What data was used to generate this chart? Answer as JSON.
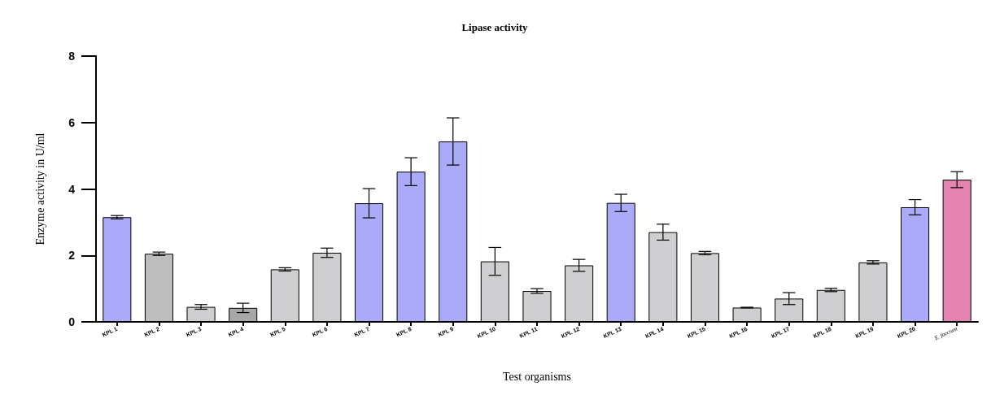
{
  "chart_data": {
    "type": "bar",
    "title": "Lipase activity",
    "xlabel": "Test organisms",
    "ylabel": "Enzyme activity in U/ml",
    "categories": [
      "KPL 1",
      "KPL 2",
      "KPL 3",
      "KPL 4",
      "KPL 5",
      "KPL 6",
      "KPL 7",
      "KPL 8",
      "KPL 9",
      "KPL 10",
      "KPL 11",
      "KPL 12",
      "KPL 13",
      "KPL 14",
      "KPL 15",
      "KPL 16",
      "KPL 17",
      "KPL 18",
      "KPL 19",
      "KPL 20",
      "E. faecium"
    ],
    "values": [
      3.15,
      2.05,
      0.45,
      0.42,
      1.58,
      2.08,
      3.57,
      4.52,
      5.43,
      1.82,
      0.93,
      1.7,
      3.58,
      2.7,
      2.07,
      0.43,
      0.7,
      0.96,
      1.79,
      3.45,
      4.28
    ],
    "errors": [
      0.05,
      0.05,
      0.07,
      0.14,
      0.05,
      0.14,
      0.44,
      0.42,
      0.71,
      0.42,
      0.07,
      0.18,
      0.26,
      0.24,
      0.05,
      0.01,
      0.18,
      0.05,
      0.05,
      0.23,
      0.24
    ],
    "colors": [
      "#aaaaf8",
      "#bdbdbd",
      "#cfcfd1",
      "#a8a8a8",
      "#cfcfd1",
      "#cfcfd1",
      "#aaaaf8",
      "#aaaaf8",
      "#aaaaf8",
      "#cfcfd1",
      "#cfcfd1",
      "#cfcfd1",
      "#aaaaf8",
      "#cfcfd1",
      "#cfcfd1",
      "#cfcfd1",
      "#cfcfd1",
      "#cfcfd1",
      "#cfcfd1",
      "#aaaaf8",
      "#e482b0"
    ],
    "ylim": [
      0,
      8
    ],
    "yticks": [
      0,
      2,
      4,
      6,
      8
    ],
    "grid": false
  }
}
